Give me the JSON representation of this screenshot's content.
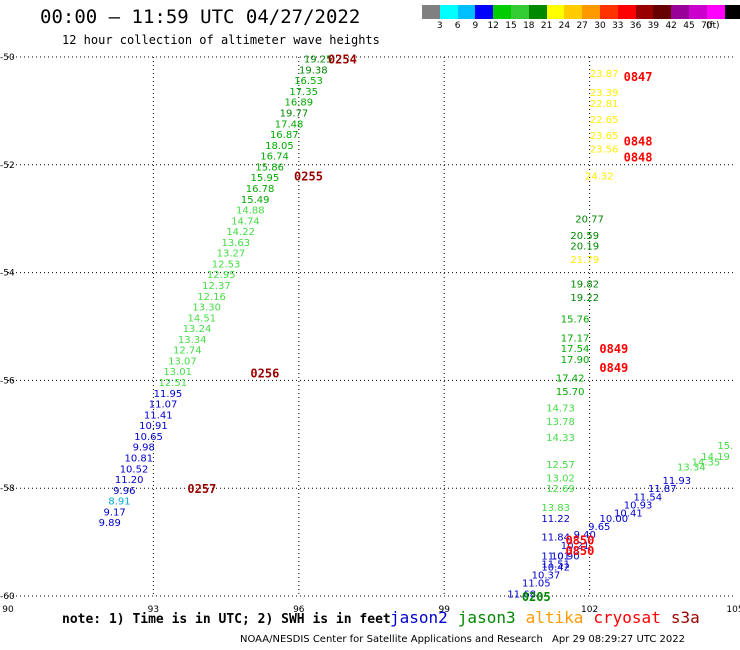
{
  "header": {
    "title": "00:00 – 11:59 UTC 04/27/2022",
    "subtitle": "12 hour collection of altimeter wave heights"
  },
  "colorbar": {
    "colors": [
      "#808080",
      "#00ffff",
      "#00bfff",
      "#0000ff",
      "#00cc00",
      "#33cc33",
      "#008800",
      "#ffff00",
      "#ffcc00",
      "#ff9900",
      "#ff3300",
      "#ff0000",
      "#990000",
      "#660000",
      "#990099",
      "#cc00cc",
      "#ff00ff",
      "#000000"
    ],
    "tick_labels": [
      "3",
      "6",
      "9",
      "12",
      "15",
      "18",
      "21",
      "24",
      "27",
      "30",
      "33",
      "36",
      "39",
      "42",
      "45",
      "70"
    ],
    "unit": "(ft)"
  },
  "footer": {
    "note": "note: 1) Time is in UTC; 2) SWH is in feet",
    "satellites": [
      {
        "name": "jason2",
        "color": "#0000cc"
      },
      {
        "name": "jason3",
        "color": "#008800"
      },
      {
        "name": "altika",
        "color": "#ff9900"
      },
      {
        "name": "cryosat",
        "color": "#ff0000"
      },
      {
        "name": "s3a",
        "color": "#990000"
      }
    ],
    "credit": "NOAA/NESDIS Center for Satellite Applications and Research",
    "stamp": "Apr 29 08:29:27 UTC 2022"
  },
  "chart_data": {
    "type": "scatter",
    "title": "00:00 – 11:59 UTC 04/27/2022",
    "subtitle": "12 hour collection of altimeter wave heights",
    "xlim": [
      90,
      105
    ],
    "ylim": [
      -60,
      -50
    ],
    "x_ticks": [
      "90",
      "93",
      "96",
      "99",
      "102",
      "105"
    ],
    "y_ticks": [
      "-50",
      "-52",
      "-54",
      "-56",
      "-58",
      "-60"
    ],
    "grid": true,
    "tracks": [
      {
        "name": "track-left",
        "points": [
          {
            "x": 96.4,
            "y": -50.03,
            "v": "19.25",
            "c": "#008800"
          },
          {
            "x": 96.3,
            "y": -50.23,
            "v": "19.38",
            "c": "#008800"
          },
          {
            "x": 96.2,
            "y": -50.43,
            "v": "16.53",
            "c": "#00aa00"
          },
          {
            "x": 96.1,
            "y": -50.63,
            "v": "17.35",
            "c": "#00aa00"
          },
          {
            "x": 96.0,
            "y": -50.83,
            "v": "16.89",
            "c": "#00aa00"
          },
          {
            "x": 95.9,
            "y": -51.03,
            "v": "19.77",
            "c": "#008800"
          },
          {
            "x": 95.8,
            "y": -51.23,
            "v": "17.48",
            "c": "#00aa00"
          },
          {
            "x": 95.7,
            "y": -51.43,
            "v": "16.87",
            "c": "#00aa00"
          },
          {
            "x": 95.6,
            "y": -51.63,
            "v": "18.05",
            "c": "#00aa00"
          },
          {
            "x": 95.5,
            "y": -51.83,
            "v": "16.74",
            "c": "#00aa00"
          },
          {
            "x": 95.4,
            "y": -52.03,
            "v": "15.86",
            "c": "#00aa00"
          },
          {
            "x": 95.3,
            "y": -52.23,
            "v": "15.95",
            "c": "#00aa00"
          },
          {
            "x": 95.2,
            "y": -52.43,
            "v": "16.78",
            "c": "#00aa00"
          },
          {
            "x": 95.1,
            "y": -52.63,
            "v": "15.49",
            "c": "#00aa00"
          },
          {
            "x": 95.0,
            "y": -52.83,
            "v": "14.88",
            "c": "#44dd44"
          },
          {
            "x": 94.9,
            "y": -53.03,
            "v": "14.74",
            "c": "#44dd44"
          },
          {
            "x": 94.8,
            "y": -53.23,
            "v": "14.22",
            "c": "#44dd44"
          },
          {
            "x": 94.7,
            "y": -53.43,
            "v": "13.63",
            "c": "#44dd44"
          },
          {
            "x": 94.6,
            "y": -53.63,
            "v": "13.27",
            "c": "#44dd44"
          },
          {
            "x": 94.5,
            "y": -53.83,
            "v": "12.53",
            "c": "#44dd44"
          },
          {
            "x": 94.4,
            "y": -54.03,
            "v": "12.95",
            "c": "#44dd44"
          },
          {
            "x": 94.3,
            "y": -54.23,
            "v": "12.37",
            "c": "#44dd44"
          },
          {
            "x": 94.2,
            "y": -54.43,
            "v": "12.16",
            "c": "#44dd44"
          },
          {
            "x": 94.1,
            "y": -54.63,
            "v": "13.30",
            "c": "#44dd44"
          },
          {
            "x": 94.0,
            "y": -54.83,
            "v": "14.51",
            "c": "#44dd44"
          },
          {
            "x": 93.9,
            "y": -55.03,
            "v": "13.24",
            "c": "#44dd44"
          },
          {
            "x": 93.8,
            "y": -55.23,
            "v": "13.34",
            "c": "#44dd44"
          },
          {
            "x": 93.7,
            "y": -55.43,
            "v": "12.74",
            "c": "#44dd44"
          },
          {
            "x": 93.6,
            "y": -55.63,
            "v": "13.07",
            "c": "#44dd44"
          },
          {
            "x": 93.5,
            "y": -55.83,
            "v": "13.01",
            "c": "#44dd44"
          },
          {
            "x": 93.4,
            "y": -56.03,
            "v": "12.51",
            "c": "#44dd44"
          },
          {
            "x": 93.3,
            "y": -56.23,
            "v": "11.95",
            "c": "#0000cc"
          },
          {
            "x": 93.2,
            "y": -56.43,
            "v": "11.07",
            "c": "#0000cc"
          },
          {
            "x": 93.1,
            "y": -56.63,
            "v": "11.41",
            "c": "#0000cc"
          },
          {
            "x": 93.0,
            "y": -56.83,
            "v": "10.91",
            "c": "#0000cc"
          },
          {
            "x": 92.9,
            "y": -57.03,
            "v": "10.65",
            "c": "#0000cc"
          },
          {
            "x": 92.8,
            "y": -57.23,
            "v": "9.98",
            "c": "#0000cc"
          },
          {
            "x": 92.7,
            "y": -57.43,
            "v": "10.81",
            "c": "#0000cc"
          },
          {
            "x": 92.6,
            "y": -57.63,
            "v": "10.52",
            "c": "#0000cc"
          },
          {
            "x": 92.5,
            "y": -57.83,
            "v": "11.20",
            "c": "#0000cc"
          },
          {
            "x": 92.4,
            "y": -58.03,
            "v": "9.96",
            "c": "#0000cc"
          },
          {
            "x": 92.3,
            "y": -58.23,
            "v": "8.91",
            "c": "#00aadd"
          },
          {
            "x": 92.2,
            "y": -58.43,
            "v": "9.17",
            "c": "#0000cc"
          },
          {
            "x": 92.1,
            "y": -58.63,
            "v": "9.89",
            "c": "#0000cc"
          }
        ]
      },
      {
        "name": "track-right",
        "points": [
          {
            "x": 102.3,
            "y": -50.3,
            "v": "23.87",
            "c": "#ffee00"
          },
          {
            "x": 102.3,
            "y": -50.65,
            "v": "23.39",
            "c": "#ffee00"
          },
          {
            "x": 102.3,
            "y": -50.85,
            "v": "22.81",
            "c": "#ffee00"
          },
          {
            "x": 102.3,
            "y": -51.15,
            "v": "22.65",
            "c": "#ffee00"
          },
          {
            "x": 102.3,
            "y": -51.45,
            "v": "23.65",
            "c": "#ffee00"
          },
          {
            "x": 102.3,
            "y": -51.7,
            "v": "23.56",
            "c": "#ffee00"
          },
          {
            "x": 102.2,
            "y": -52.2,
            "v": "24.32",
            "c": "#ffee00"
          },
          {
            "x": 102.0,
            "y": -53.0,
            "v": "20.77",
            "c": "#008800"
          },
          {
            "x": 101.9,
            "y": -53.3,
            "v": "20.59",
            "c": "#008800"
          },
          {
            "x": 101.9,
            "y": -53.5,
            "v": "20.19",
            "c": "#008800"
          },
          {
            "x": 101.9,
            "y": -53.75,
            "v": "21.79",
            "c": "#ffee00"
          },
          {
            "x": 101.9,
            "y": -54.2,
            "v": "19.82",
            "c": "#008800"
          },
          {
            "x": 101.9,
            "y": -54.45,
            "v": "19.22",
            "c": "#008800"
          },
          {
            "x": 101.7,
            "y": -54.85,
            "v": "15.76",
            "c": "#00aa00"
          },
          {
            "x": 101.7,
            "y": -55.2,
            "v": "17.17",
            "c": "#00aa00"
          },
          {
            "x": 101.7,
            "y": -55.4,
            "v": "17.54",
            "c": "#00aa00"
          },
          {
            "x": 101.7,
            "y": -55.6,
            "v": "17.90",
            "c": "#00aa00"
          },
          {
            "x": 101.6,
            "y": -55.95,
            "v": "17.42",
            "c": "#00aa00"
          },
          {
            "x": 101.6,
            "y": -56.2,
            "v": "15.70",
            "c": "#00aa00"
          },
          {
            "x": 101.4,
            "y": -56.5,
            "v": "14.73",
            "c": "#44dd44"
          },
          {
            "x": 101.4,
            "y": -56.75,
            "v": "13.78",
            "c": "#44dd44"
          },
          {
            "x": 101.4,
            "y": -57.05,
            "v": "14.33",
            "c": "#44dd44"
          },
          {
            "x": 101.4,
            "y": -57.55,
            "v": "12.57",
            "c": "#44dd44"
          },
          {
            "x": 101.4,
            "y": -57.8,
            "v": "13.02",
            "c": "#44dd44"
          },
          {
            "x": 101.4,
            "y": -58.0,
            "v": "12.69",
            "c": "#44dd44"
          },
          {
            "x": 101.3,
            "y": -58.35,
            "v": "13.83",
            "c": "#44dd44"
          },
          {
            "x": 101.3,
            "y": -58.55,
            "v": "11.22",
            "c": "#0000cc"
          },
          {
            "x": 101.3,
            "y": -58.9,
            "v": "11.84",
            "c": "#0000cc"
          },
          {
            "x": 101.3,
            "y": -59.25,
            "v": "11.01",
            "c": "#0000cc"
          },
          {
            "x": 101.3,
            "y": -59.4,
            "v": "11.51",
            "c": "#0000cc"
          }
        ]
      },
      {
        "name": "track-diagonal",
        "points": [
          {
            "x": 100.6,
            "y": -59.95,
            "v": "11.68",
            "c": "#0000cc"
          },
          {
            "x": 100.9,
            "y": -59.75,
            "v": "11.05",
            "c": "#0000cc"
          },
          {
            "x": 101.1,
            "y": -59.6,
            "v": "10.37",
            "c": "#0000cc"
          },
          {
            "x": 101.3,
            "y": -59.45,
            "v": "10.42",
            "c": "#0000cc"
          },
          {
            "x": 101.5,
            "y": -59.25,
            "v": "10.90",
            "c": "#0000cc"
          },
          {
            "x": 101.7,
            "y": -59.05,
            "v": "10.21",
            "c": "#0000cc"
          },
          {
            "x": 101.9,
            "y": -58.85,
            "v": "9.40",
            "c": "#0000cc"
          },
          {
            "x": 102.2,
            "y": -58.7,
            "v": "9.65",
            "c": "#0000cc"
          },
          {
            "x": 102.5,
            "y": -58.55,
            "v": "10.00",
            "c": "#0000cc"
          },
          {
            "x": 102.8,
            "y": -58.45,
            "v": "10.41",
            "c": "#0000cc"
          },
          {
            "x": 103.0,
            "y": -58.3,
            "v": "10.93",
            "c": "#0000cc"
          },
          {
            "x": 103.2,
            "y": -58.15,
            "v": "11.54",
            "c": "#0000cc"
          },
          {
            "x": 103.5,
            "y": -58.0,
            "v": "11.87",
            "c": "#0000cc"
          },
          {
            "x": 103.8,
            "y": -57.85,
            "v": "11.93",
            "c": "#0000cc"
          },
          {
            "x": 104.1,
            "y": -57.6,
            "v": "13.34",
            "c": "#44dd44"
          },
          {
            "x": 104.4,
            "y": -57.5,
            "v": "14.35",
            "c": "#44dd44"
          },
          {
            "x": 104.6,
            "y": -57.4,
            "v": "14.19",
            "c": "#44dd44"
          },
          {
            "x": 104.8,
            "y": -57.2,
            "v": "15.",
            "c": "#44dd44"
          }
        ]
      }
    ],
    "pass_labels": [
      {
        "x": 96.9,
        "y": -50.03,
        "v": "0254",
        "c": "#990000"
      },
      {
        "x": 96.2,
        "y": -52.2,
        "v": "0255",
        "c": "#990000"
      },
      {
        "x": 95.3,
        "y": -55.85,
        "v": "0256",
        "c": "#990000"
      },
      {
        "x": 94.0,
        "y": -58.0,
        "v": "0257",
        "c": "#990000"
      },
      {
        "x": 103.0,
        "y": -50.35,
        "v": "0847",
        "c": "#ff0000"
      },
      {
        "x": 103.0,
        "y": -51.55,
        "v": "0848",
        "c": "#ff0000"
      },
      {
        "x": 103.0,
        "y": -51.85,
        "v": "0848",
        "c": "#ff0000"
      },
      {
        "x": 102.5,
        "y": -55.4,
        "v": "0849",
        "c": "#ff0000"
      },
      {
        "x": 102.5,
        "y": -55.75,
        "v": "0849",
        "c": "#ff0000"
      },
      {
        "x": 101.8,
        "y": -58.95,
        "v": "0850",
        "c": "#ff0000"
      },
      {
        "x": 101.8,
        "y": -59.15,
        "v": "0850",
        "c": "#ff0000"
      },
      {
        "x": 100.9,
        "y": -60.0,
        "v": "0205",
        "c": "#008800"
      }
    ]
  }
}
